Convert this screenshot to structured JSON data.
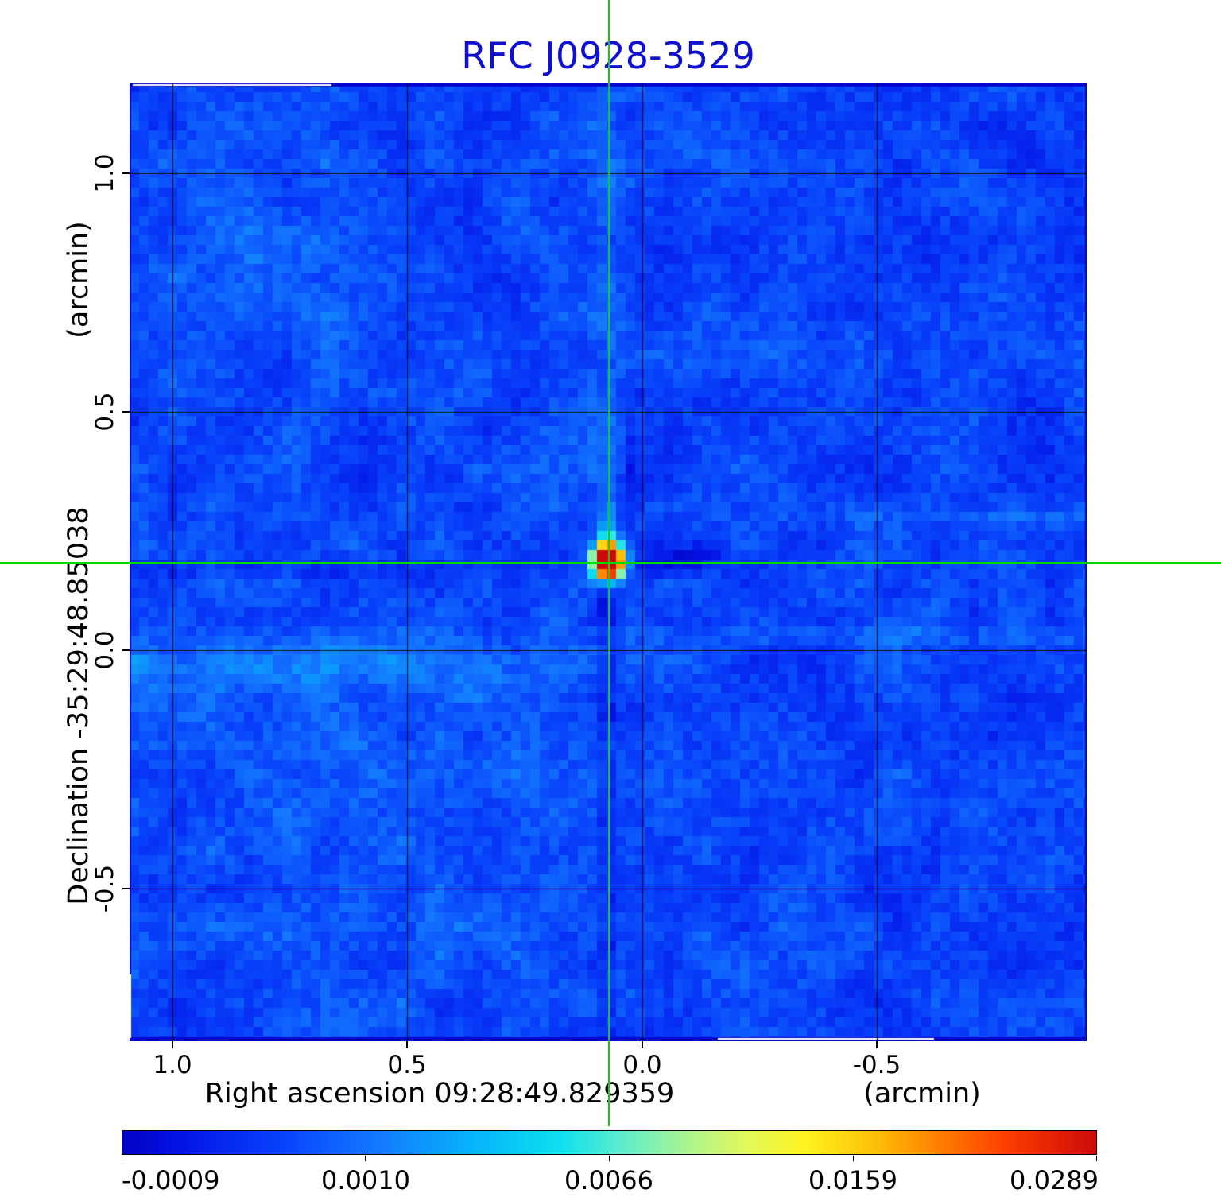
{
  "title": {
    "text": "RFC J0928-3529"
  },
  "colors": {
    "title": "#0f0fd0",
    "crosshair": "#00d800",
    "axis_text": "#000000",
    "gridline": "#000000",
    "map_edge": "#0606cf"
  },
  "y_axis": {
    "unit_label": "(arcmin)",
    "axis_label": "Declination  -35:29:48.85038",
    "ticks": [
      "1.0",
      "0.5",
      "0.0",
      "-0.5"
    ]
  },
  "x_axis": {
    "axis_label": "Right ascension  09:28:49.829359",
    "unit_label": "(arcmin)",
    "ticks": [
      "1.0",
      "0.5",
      "0.0",
      "-0.5"
    ]
  },
  "colorbar": {
    "tick_labels": [
      "-0.0009",
      "0.0010",
      "0.0066",
      "0.0159",
      "0.0289"
    ]
  },
  "colormap": {
    "stops": [
      [
        0.0,
        "#0202c2"
      ],
      [
        0.06,
        "#0414e6"
      ],
      [
        0.16,
        "#0840fa"
      ],
      [
        0.26,
        "#1478ff"
      ],
      [
        0.36,
        "#06b4fb"
      ],
      [
        0.45,
        "#0ee0ee"
      ],
      [
        0.52,
        "#66eec8"
      ],
      [
        0.58,
        "#aaf48e"
      ],
      [
        0.64,
        "#e2f85c"
      ],
      [
        0.7,
        "#fff320"
      ],
      [
        0.77,
        "#ffc108"
      ],
      [
        0.84,
        "#ff7d00"
      ],
      [
        0.91,
        "#fb3c00"
      ],
      [
        1.0,
        "#cd0a0a"
      ]
    ]
  },
  "chart_data": {
    "type": "heatmap",
    "title": "RFC J0928-3529",
    "xlabel": "Right ascension  09:28:49.829359 (arcmin)",
    "ylabel": "Declination  -35:29:48.85038 (arcmin)",
    "x_ticks": [
      1.0,
      0.5,
      0.0,
      -0.5
    ],
    "y_ticks": [
      1.0,
      0.5,
      0.0,
      -0.5
    ],
    "x_range_arcmin": [
      1.09,
      -0.95
    ],
    "y_range_arcmin": [
      -0.82,
      1.19
    ],
    "grid": true,
    "colorbar_tick_values": [
      -0.0009,
      0.001,
      0.0066,
      0.0159,
      0.0289
    ],
    "colorbar_range": [
      -0.0009,
      0.0289
    ],
    "peak_source": {
      "x_arcmin": 0.07,
      "y_arcmin": 0.18,
      "value": 0.0289
    },
    "background_level_approx": 0.001,
    "crosshair_marks_peak": true,
    "legend_position": "bottom-colorbar"
  }
}
